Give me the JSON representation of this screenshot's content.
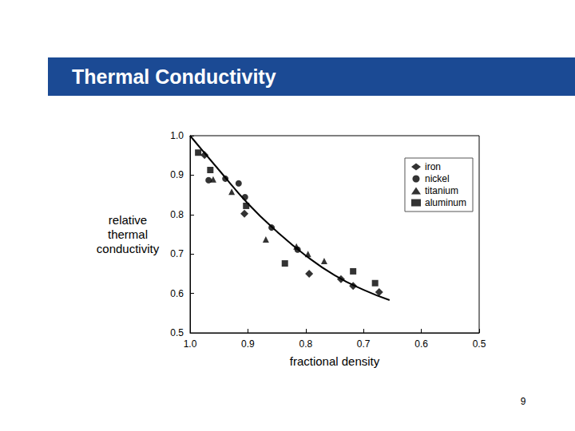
{
  "chart_data": {
    "type": "scatter",
    "title": "Thermal Conductivity",
    "x_label": "fractional density",
    "y_label": "relative thermal conductivity",
    "xlim": [
      1.0,
      0.5
    ],
    "xticks": [
      {
        "value": 1.0,
        "label": "1.0"
      },
      {
        "value": 0.9,
        "label": "0.9"
      },
      {
        "value": 0.8,
        "label": "0.8"
      },
      {
        "value": 0.7,
        "label": "0.7"
      },
      {
        "value": 0.6,
        "label": "0.6"
      },
      {
        "value": 0.5,
        "label": "0.5"
      }
    ],
    "ylim": [
      0.5,
      1.0
    ],
    "yticks": [
      {
        "value": 0.5,
        "label": "0.5"
      },
      {
        "value": 0.6,
        "label": "0.6"
      },
      {
        "value": 0.7,
        "label": "0.7"
      },
      {
        "value": 0.8,
        "label": "0.8"
      },
      {
        "value": 0.9,
        "label": "0.9"
      },
      {
        "value": 1.0,
        "label": "1.0"
      }
    ],
    "grid": false,
    "legend": "upper right",
    "series": [
      {
        "name": "iron",
        "marker": "diamond",
        "color": "#000000",
        "x": [
          0.975,
          0.906,
          0.794,
          0.739,
          0.718,
          0.673
        ],
        "values": [
          0.951,
          0.802,
          0.65,
          0.636,
          0.619,
          0.603
        ]
      },
      {
        "name": "nickel",
        "marker": "circle",
        "color": "#000000",
        "x": [
          0.968,
          0.939,
          0.916,
          0.905,
          0.859,
          0.814
        ],
        "values": [
          0.887,
          0.891,
          0.879,
          0.844,
          0.767,
          0.711
        ]
      },
      {
        "name": "titanium",
        "marker": "triangle",
        "color": "#000000",
        "x": [
          0.96,
          0.928,
          0.869,
          0.816,
          0.796,
          0.768
        ],
        "values": [
          0.889,
          0.858,
          0.737,
          0.719,
          0.7,
          0.682
        ]
      },
      {
        "name": "aluminum",
        "marker": "square",
        "color": "#000000",
        "x": [
          0.986,
          0.965,
          0.903,
          0.836,
          0.718,
          0.68
        ],
        "values": [
          0.957,
          0.913,
          0.822,
          0.676,
          0.656,
          0.626
        ]
      },
      {
        "type": "line",
        "color": "#000000",
        "line_style": "solid",
        "x": [
          1.0,
          0.95,
          0.9,
          0.85,
          0.8,
          0.75,
          0.7,
          0.655
        ],
        "values": [
          1.0,
          0.913,
          0.828,
          0.757,
          0.696,
          0.646,
          0.609,
          0.583
        ]
      }
    ]
  },
  "page_number": 9
}
